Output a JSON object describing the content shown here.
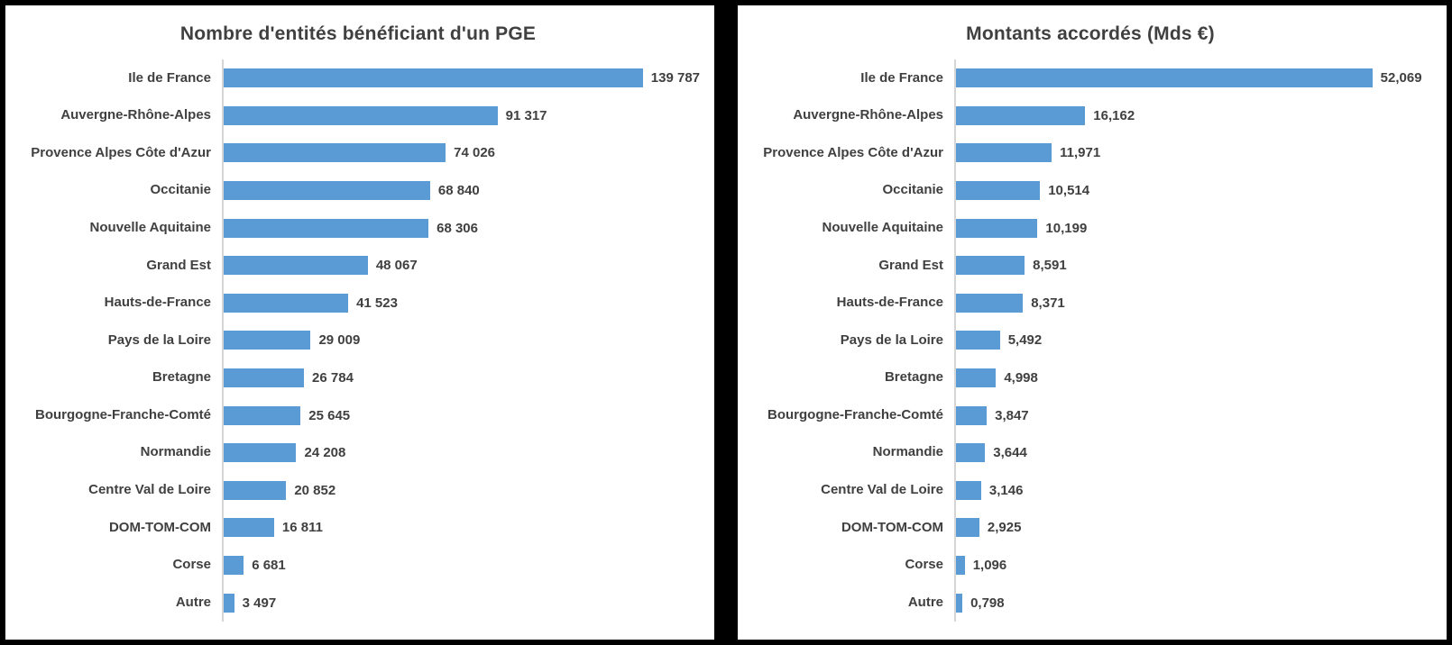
{
  "accent_color": "#5b9bd5",
  "text_color": "#404040",
  "chart_data": [
    {
      "type": "bar",
      "orientation": "horizontal",
      "title": "Nombre d'entités bénéficiant d'un PGE",
      "xlabel": "",
      "ylabel": "",
      "xlim": [
        0,
        160000
      ],
      "grid": false,
      "legend": false,
      "bar_color": "#5b9bd5",
      "categories": [
        "Ile de France",
        "Auvergne-Rhône-Alpes",
        "Provence Alpes Côte d'Azur",
        "Occitanie",
        "Nouvelle Aquitaine",
        "Grand Est",
        "Hauts-de-France",
        "Pays de la Loire",
        "Bretagne",
        "Bourgogne-Franche-Comté",
        "Normandie",
        "Centre Val de Loire",
        "DOM-TOM-COM",
        "Corse",
        "Autre"
      ],
      "values": [
        139787,
        91317,
        74026,
        68840,
        68306,
        48067,
        41523,
        29009,
        26784,
        25645,
        24208,
        20852,
        16811,
        6681,
        3497
      ],
      "value_labels": [
        "139 787",
        "91 317",
        "74 026",
        "68 840",
        "68 306",
        "48 067",
        "41 523",
        "29 009",
        "26 784",
        "25 645",
        "24 208",
        "20 852",
        "16 811",
        "6 681",
        "3 497"
      ]
    },
    {
      "type": "bar",
      "orientation": "horizontal",
      "title": "Montants accordés (Mds €)",
      "xlabel": "",
      "ylabel": "",
      "xlim": [
        0,
        60
      ],
      "grid": false,
      "legend": false,
      "bar_color": "#5b9bd5",
      "categories": [
        "Ile de France",
        "Auvergne-Rhône-Alpes",
        "Provence Alpes Côte d'Azur",
        "Occitanie",
        "Nouvelle Aquitaine",
        "Grand Est",
        "Hauts-de-France",
        "Pays de la Loire",
        "Bretagne",
        "Bourgogne-Franche-Comté",
        "Normandie",
        "Centre Val de Loire",
        "DOM-TOM-COM",
        "Corse",
        "Autre"
      ],
      "values": [
        52.069,
        16.162,
        11.971,
        10.514,
        10.199,
        8.591,
        8.371,
        5.492,
        4.998,
        3.847,
        3.644,
        3.146,
        2.925,
        1.096,
        0.798
      ],
      "value_labels": [
        "52,069",
        "16,162",
        "11,971",
        "10,514",
        "10,199",
        "8,591",
        "8,371",
        "5,492",
        "4,998",
        "3,847",
        "3,644",
        "3,146",
        "2,925",
        "1,096",
        "0,798"
      ]
    }
  ]
}
